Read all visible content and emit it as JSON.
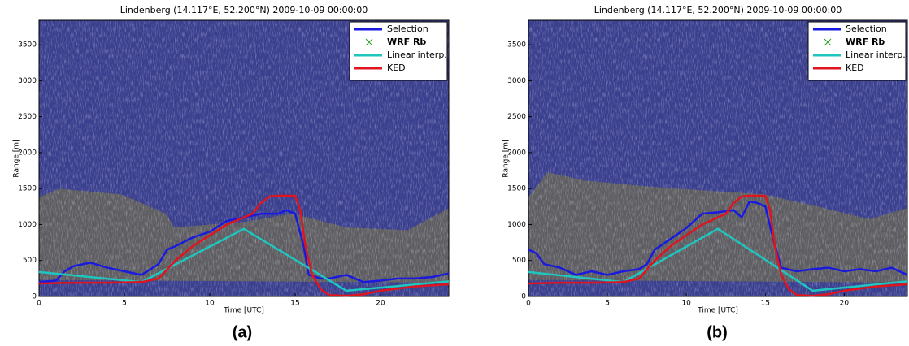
{
  "chart_data": [
    {
      "type": "line",
      "title": "Lindenberg (14.117°E, 52.200°N) 2009-10-09 00:00:00",
      "caption": "(a)",
      "xlabel": "Time [UTC]",
      "ylabel": "Range [m]",
      "xlim": [
        0,
        24
      ],
      "xticks": [
        0,
        5,
        10,
        15,
        20
      ],
      "ylim": [
        0,
        3840
      ],
      "yticks": [
        0,
        500,
        1000,
        1500,
        2000,
        2500,
        3000,
        3500
      ],
      "legend": "upper right",
      "series": [
        {
          "name": "Selection",
          "color": "#1a1adf",
          "x": [
            0,
            1,
            1.5,
            2,
            3,
            4,
            5,
            6,
            7,
            7.5,
            8,
            9,
            10,
            11,
            12,
            13,
            14,
            14.5,
            15,
            15.5,
            15.8,
            16.5,
            17,
            18,
            19,
            20,
            21,
            22,
            23,
            24
          ],
          "values": [
            200,
            220,
            350,
            420,
            470,
            400,
            350,
            300,
            450,
            650,
            700,
            820,
            900,
            1050,
            1100,
            1150,
            1150,
            1200,
            1150,
            700,
            300,
            250,
            250,
            300,
            200,
            220,
            250,
            250,
            270,
            320
          ]
        },
        {
          "name": "WRF Rb",
          "color": "#2ca02c",
          "marker": "x",
          "x": [],
          "values": []
        },
        {
          "name": "Linear interp.",
          "color": "#1fc6c0",
          "x": [
            0,
            6,
            12,
            18,
            24
          ],
          "values": [
            340,
            200,
            940,
            80,
            210
          ]
        },
        {
          "name": "KED",
          "color": "#e0141e",
          "x": [
            0,
            2,
            4,
            6,
            7,
            8,
            9,
            10,
            11,
            12,
            12.5,
            13,
            13.5,
            14,
            15,
            15.3,
            15.6,
            16,
            16.5,
            17,
            18,
            19,
            20,
            22,
            24
          ],
          "values": [
            180,
            190,
            190,
            200,
            250,
            500,
            700,
            850,
            1000,
            1100,
            1150,
            1300,
            1390,
            1400,
            1400,
            1200,
            700,
            300,
            100,
            20,
            10,
            30,
            80,
            140,
            170
          ]
        }
      ]
    },
    {
      "type": "line",
      "title": "Lindenberg (14.117°E, 52.200°N) 2009-10-09 00:00:00",
      "caption": "(b)",
      "xlabel": "Time [UTC]",
      "ylabel": "Range [m]",
      "xlim": [
        0,
        24
      ],
      "xticks": [
        0,
        5,
        10,
        15,
        20
      ],
      "ylim": [
        0,
        3840
      ],
      "yticks": [
        0,
        500,
        1000,
        1500,
        2000,
        2500,
        3000,
        3500
      ],
      "legend": "upper right",
      "series": [
        {
          "name": "Selection",
          "color": "#1a1adf",
          "x": [
            0,
            0.5,
            1,
            2,
            3,
            4,
            5,
            6,
            7,
            7.5,
            8,
            9,
            10,
            11,
            12,
            13,
            13.5,
            14,
            14.5,
            15,
            15.5,
            16,
            17,
            18,
            19,
            20,
            21,
            22,
            23,
            24
          ],
          "values": [
            650,
            600,
            450,
            400,
            300,
            350,
            300,
            350,
            380,
            450,
            650,
            800,
            950,
            1150,
            1170,
            1200,
            1100,
            1320,
            1300,
            1250,
            800,
            400,
            350,
            380,
            400,
            350,
            380,
            350,
            400,
            300
          ]
        },
        {
          "name": "WRF Rb",
          "color": "#2ca02c",
          "marker": "x",
          "x": [],
          "values": []
        },
        {
          "name": "Linear interp.",
          "color": "#1fc6c0",
          "x": [
            0,
            6,
            12,
            18,
            24
          ],
          "values": [
            340,
            200,
            940,
            80,
            210
          ]
        },
        {
          "name": "KED",
          "color": "#e0141e",
          "x": [
            0,
            2,
            4,
            6,
            7,
            8,
            9,
            10,
            11,
            12,
            12.5,
            13,
            13.5,
            14,
            15,
            15.3,
            15.6,
            16,
            16.5,
            17,
            18,
            19,
            20,
            22,
            24
          ],
          "values": [
            180,
            190,
            190,
            200,
            250,
            500,
            700,
            850,
            1000,
            1100,
            1150,
            1300,
            1390,
            1400,
            1400,
            1200,
            700,
            300,
            100,
            20,
            10,
            30,
            80,
            140,
            170
          ]
        }
      ]
    }
  ]
}
